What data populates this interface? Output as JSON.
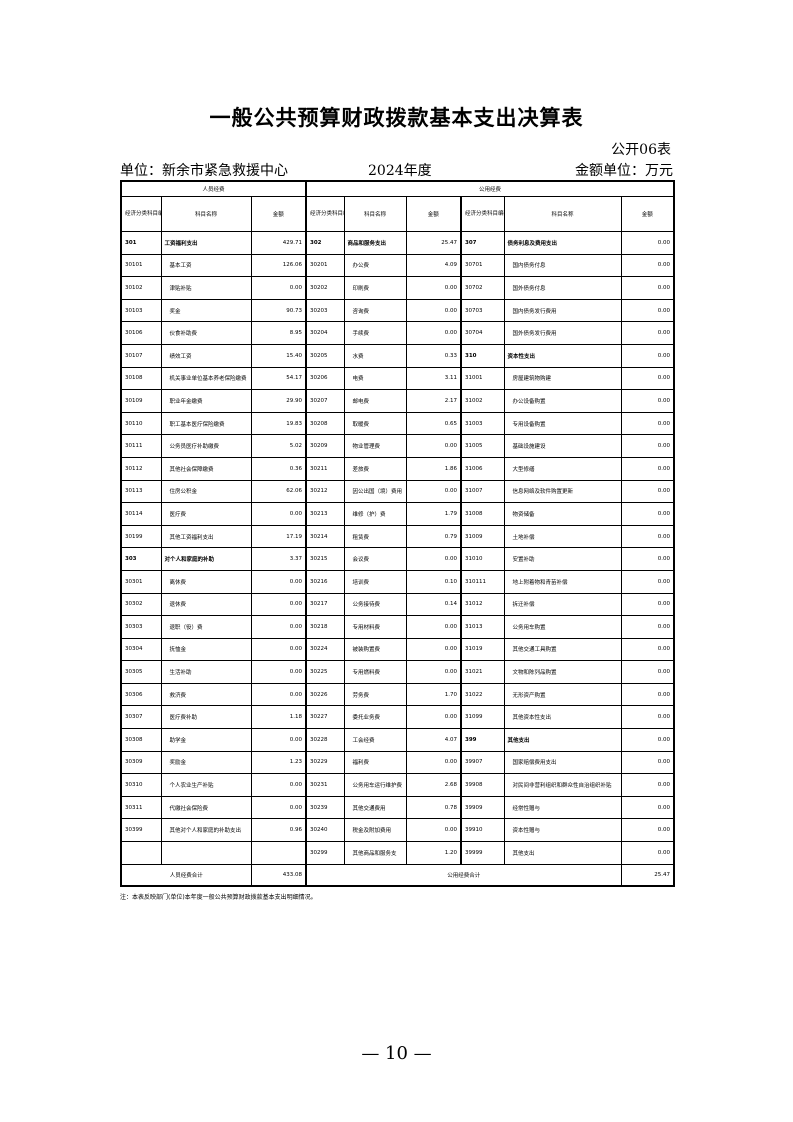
{
  "title": "一般公共预算财政拨款基本支出决算表",
  "form_no": "公开06表",
  "unit": "单位：新余市紧急救援中心",
  "year": "2024年度",
  "amount_unit": "金额单位：万元",
  "headers": {
    "personnel": "人员经费",
    "public": "公用经费",
    "code": "经济分类科目编码",
    "name": "科目名称",
    "amount": "金额"
  },
  "rows": [
    [
      [
        "301",
        "工资福利支出",
        "429.71",
        1
      ],
      [
        "302",
        "商品和服务支出",
        "25.47",
        1
      ],
      [
        "307",
        "债务利息及费用支出",
        "0.00",
        1
      ]
    ],
    [
      [
        "30101",
        "基本工资",
        "126.06"
      ],
      [
        "30201",
        "办公费",
        "4.09"
      ],
      [
        "30701",
        "国内债务付息",
        "0.00"
      ]
    ],
    [
      [
        "30102",
        "津贴补贴",
        "0.00"
      ],
      [
        "30202",
        "印刷费",
        "0.00"
      ],
      [
        "30702",
        "国外债务付息",
        "0.00"
      ]
    ],
    [
      [
        "30103",
        "奖金",
        "90.73"
      ],
      [
        "30203",
        "咨询费",
        "0.00"
      ],
      [
        "30703",
        "国内债务发行费用",
        "0.00"
      ]
    ],
    [
      [
        "30106",
        "伙食补助费",
        "8.95"
      ],
      [
        "30204",
        "手续费",
        "0.00"
      ],
      [
        "30704",
        "国外债务发行费用",
        "0.00"
      ]
    ],
    [
      [
        "30107",
        "绩效工资",
        "15.40"
      ],
      [
        "30205",
        "水费",
        "0.33"
      ],
      [
        "310",
        "资本性支出",
        "0.00",
        1
      ]
    ],
    [
      [
        "30108",
        "机关事业单位基本养老保险缴费",
        "54.17"
      ],
      [
        "30206",
        "电费",
        "3.11"
      ],
      [
        "31001",
        "房屋建筑物购建",
        "0.00"
      ]
    ],
    [
      [
        "30109",
        "职业年金缴费",
        "29.90"
      ],
      [
        "30207",
        "邮电费",
        "2.17"
      ],
      [
        "31002",
        "办公设备购置",
        "0.00"
      ]
    ],
    [
      [
        "30110",
        "职工基本医疗保险缴费",
        "19.83"
      ],
      [
        "30208",
        "取暖费",
        "0.65"
      ],
      [
        "31003",
        "专用设备购置",
        "0.00"
      ]
    ],
    [
      [
        "30111",
        "公务员医疗补助缴费",
        "5.02"
      ],
      [
        "30209",
        "物业管理费",
        "0.00"
      ],
      [
        "31005",
        "基础设施建设",
        "0.00"
      ]
    ],
    [
      [
        "30112",
        "其他社会保障缴费",
        "0.36"
      ],
      [
        "30211",
        "差旅费",
        "1.86"
      ],
      [
        "31006",
        "大型修缮",
        "0.00"
      ]
    ],
    [
      [
        "30113",
        "住房公积金",
        "62.06"
      ],
      [
        "30212",
        "因公出国（境）费用",
        "0.00"
      ],
      [
        "31007",
        "信息网络及软件购置更新",
        "0.00"
      ]
    ],
    [
      [
        "30114",
        "医疗费",
        "0.00"
      ],
      [
        "30213",
        "维修（护）费",
        "1.79"
      ],
      [
        "31008",
        "物资储备",
        "0.00"
      ]
    ],
    [
      [
        "30199",
        "其他工资福利支出",
        "17.19"
      ],
      [
        "30214",
        "租赁费",
        "0.79"
      ],
      [
        "31009",
        "土地补偿",
        "0.00"
      ]
    ],
    [
      [
        "303",
        "对个人和家庭的补助",
        "3.37",
        1
      ],
      [
        "30215",
        "会议费",
        "0.00"
      ],
      [
        "31010",
        "安置补助",
        "0.00"
      ]
    ],
    [
      [
        "30301",
        "离休费",
        "0.00"
      ],
      [
        "30216",
        "培训费",
        "0.10"
      ],
      [
        "310111",
        "地上附着物和青苗补偿",
        "0.00"
      ]
    ],
    [
      [
        "30302",
        "退休费",
        "0.00"
      ],
      [
        "30217",
        "公务接待费",
        "0.14"
      ],
      [
        "31012",
        "拆迁补偿",
        "0.00"
      ]
    ],
    [
      [
        "30303",
        "退职（役）费",
        "0.00"
      ],
      [
        "30218",
        "专用材料费",
        "0.00"
      ],
      [
        "31013",
        "公务用车购置",
        "0.00"
      ]
    ],
    [
      [
        "30304",
        "抚恤金",
        "0.00"
      ],
      [
        "30224",
        "被装购置费",
        "0.00"
      ],
      [
        "31019",
        "其他交通工具购置",
        "0.00"
      ]
    ],
    [
      [
        "30305",
        "生活补助",
        "0.00"
      ],
      [
        "30225",
        "专用燃料费",
        "0.00"
      ],
      [
        "31021",
        "文物和陈列品购置",
        "0.00"
      ]
    ],
    [
      [
        "30306",
        "救济费",
        "0.00"
      ],
      [
        "30226",
        "劳务费",
        "1.70"
      ],
      [
        "31022",
        "无形资产购置",
        "0.00"
      ]
    ],
    [
      [
        "30307",
        "医疗费补助",
        "1.18"
      ],
      [
        "30227",
        "委托业务费",
        "0.00"
      ],
      [
        "31099",
        "其他资本性支出",
        "0.00"
      ]
    ],
    [
      [
        "30308",
        "助学金",
        "0.00"
      ],
      [
        "30228",
        "工会经费",
        "4.07"
      ],
      [
        "399",
        "其他支出",
        "0.00",
        1
      ]
    ],
    [
      [
        "30309",
        "奖励金",
        "1.23"
      ],
      [
        "30229",
        "福利费",
        "0.00"
      ],
      [
        "39907",
        "国家赔偿费用支出",
        "0.00"
      ]
    ],
    [
      [
        "30310",
        "个人农业生产补贴",
        "0.00"
      ],
      [
        "30231",
        "公务用车运行维护费",
        "2.68"
      ],
      [
        "39908",
        "对民间非营利组织和群众性自治组织补贴",
        "0.00"
      ]
    ],
    [
      [
        "30311",
        "代缴社会保险费",
        "0.00"
      ],
      [
        "30239",
        "其他交通费用",
        "0.78"
      ],
      [
        "39909",
        "经常性赠与",
        "0.00"
      ]
    ],
    [
      [
        "30399",
        "其他对个人和家庭的补助支出",
        "0.96"
      ],
      [
        "30240",
        "税金及附加费用",
        "0.00"
      ],
      [
        "39910",
        "资本性赠与",
        "0.00"
      ]
    ],
    [
      [
        "",
        "",
        ""
      ],
      [
        "30299",
        "其他商品和服务支",
        "1.20"
      ],
      [
        "39999",
        "其他支出",
        "0.00"
      ]
    ]
  ],
  "totals": {
    "personnel_label": "人员经费合计",
    "personnel_value": "433.08",
    "public_label": "公用经费合计",
    "public_value": "25.47"
  },
  "note": "注：本表反映部门(单位)本年度一般公共预算财政拨款基本支出明细情况。",
  "page_number": "— 10 —"
}
